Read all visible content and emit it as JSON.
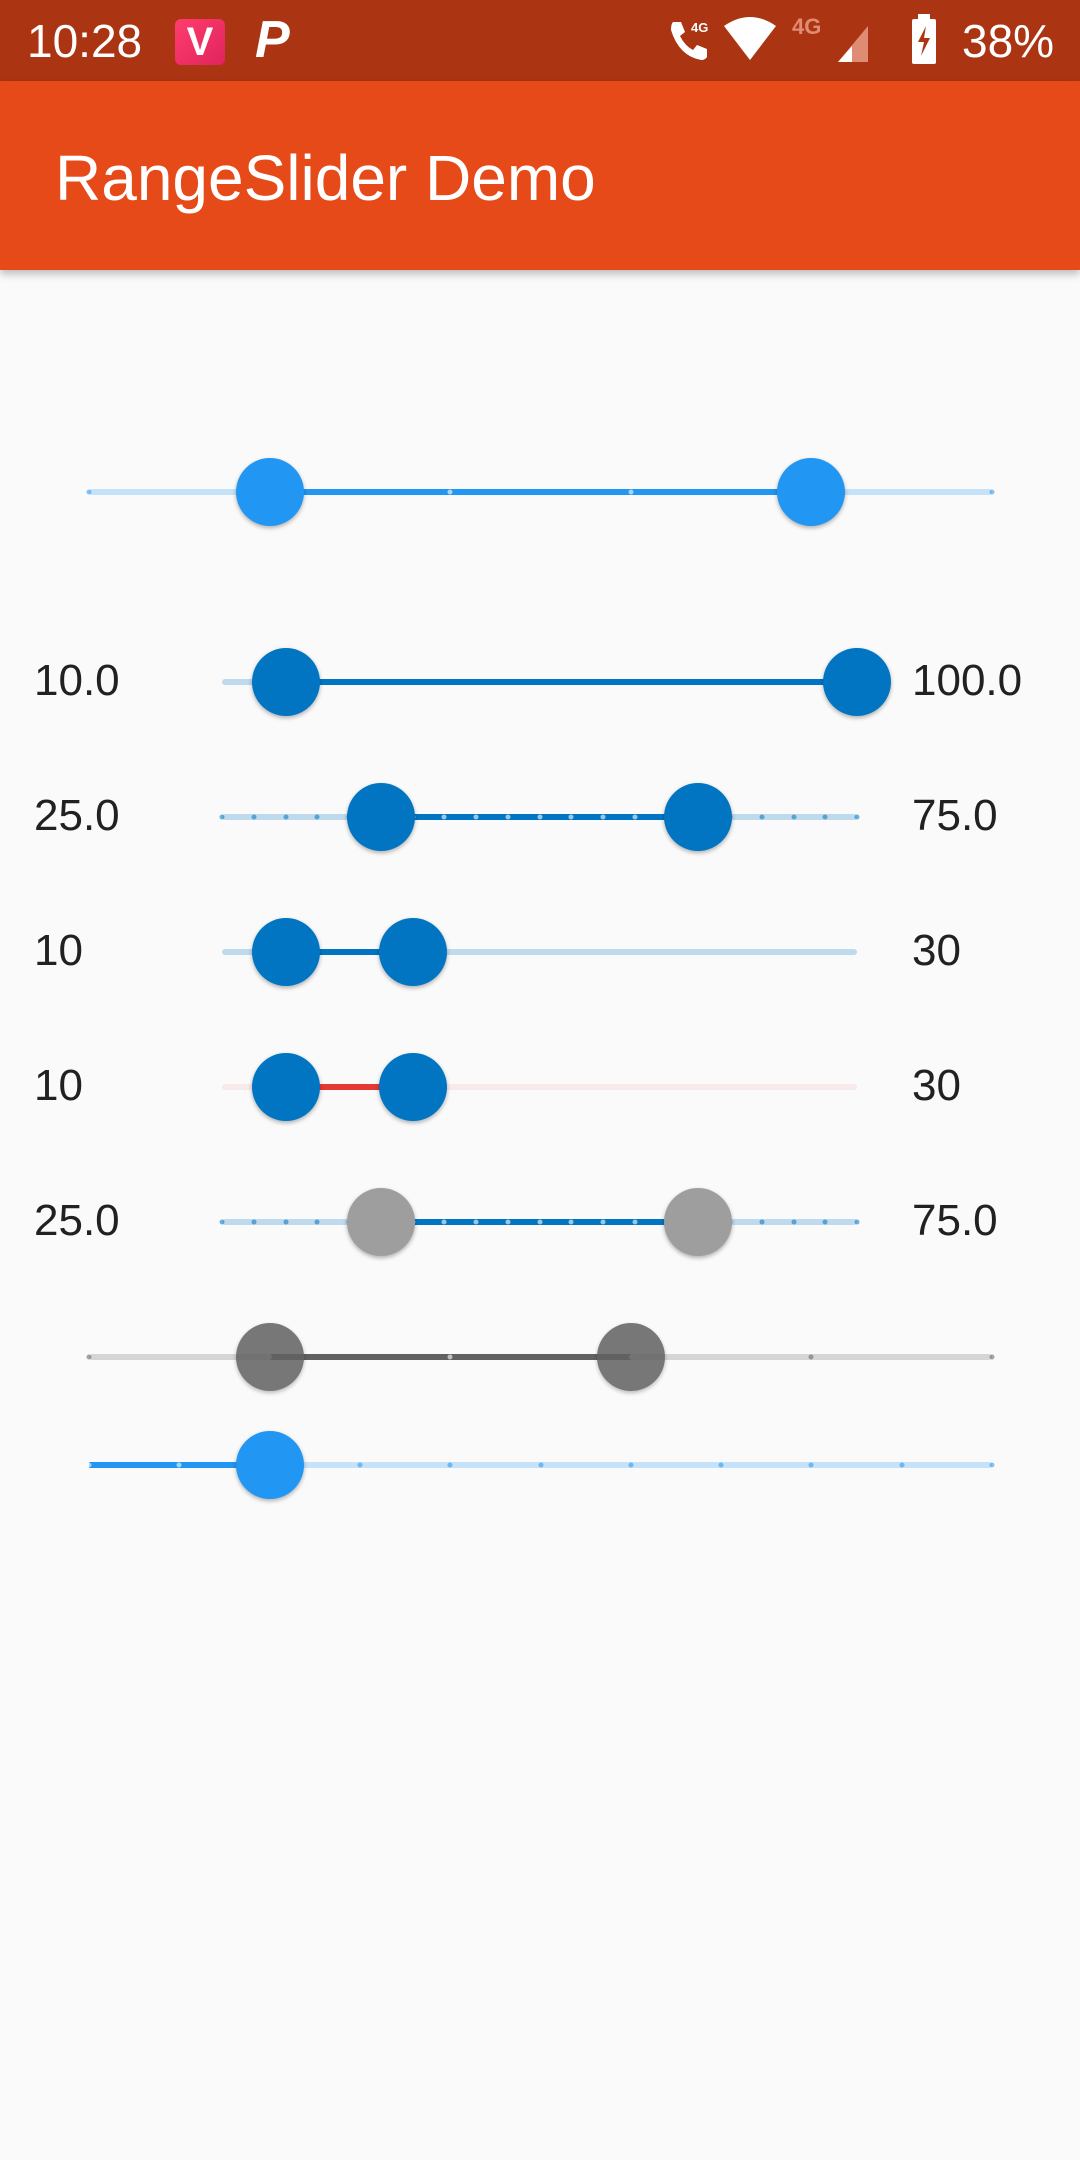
{
  "status_bar": {
    "time": "10:28",
    "battery": "38%",
    "icons": [
      "vidmate-app-icon",
      "p-app-icon",
      "volte-call-icon",
      "wifi-icon",
      "signal-4g-icon",
      "battery-charging-icon"
    ]
  },
  "app_bar": {
    "title": "RangeSlider Demo",
    "color": "#e64a19"
  },
  "sliders": [
    {
      "type": "range",
      "range": [
        0,
        100
      ],
      "values": [
        20,
        80
      ],
      "divisions": 5,
      "color": "#2196f3"
    },
    {
      "type": "range",
      "range": [
        0,
        100
      ],
      "values": [
        10,
        100
      ],
      "left_label": "10.0",
      "right_label": "100.0",
      "color": "#0175c2"
    },
    {
      "type": "range",
      "range": [
        0,
        100
      ],
      "values": [
        25,
        75
      ],
      "divisions": 20,
      "left_label": "25.0",
      "right_label": "75.0",
      "color": "#0175c2"
    },
    {
      "type": "range",
      "range": [
        0,
        100
      ],
      "values": [
        10,
        30
      ],
      "left_label": "10",
      "right_label": "30",
      "color": "#0175c2"
    },
    {
      "type": "range",
      "range": [
        0,
        100
      ],
      "values": [
        10,
        30
      ],
      "left_label": "10",
      "right_label": "30",
      "color": "#0175c2",
      "active_color": "#e53935"
    },
    {
      "type": "range",
      "range": [
        0,
        100
      ],
      "values": [
        25,
        75
      ],
      "divisions": 20,
      "left_label": "25.0",
      "right_label": "75.0",
      "color": "#0175c2",
      "thumb_color": "#9e9e9e"
    },
    {
      "type": "range",
      "range": [
        0,
        100
      ],
      "values": [
        20,
        60
      ],
      "divisions": 5,
      "color": "#616161"
    },
    {
      "type": "single",
      "range": [
        0,
        100
      ],
      "value": 20,
      "divisions": 10,
      "color": "#2196f3"
    }
  ]
}
